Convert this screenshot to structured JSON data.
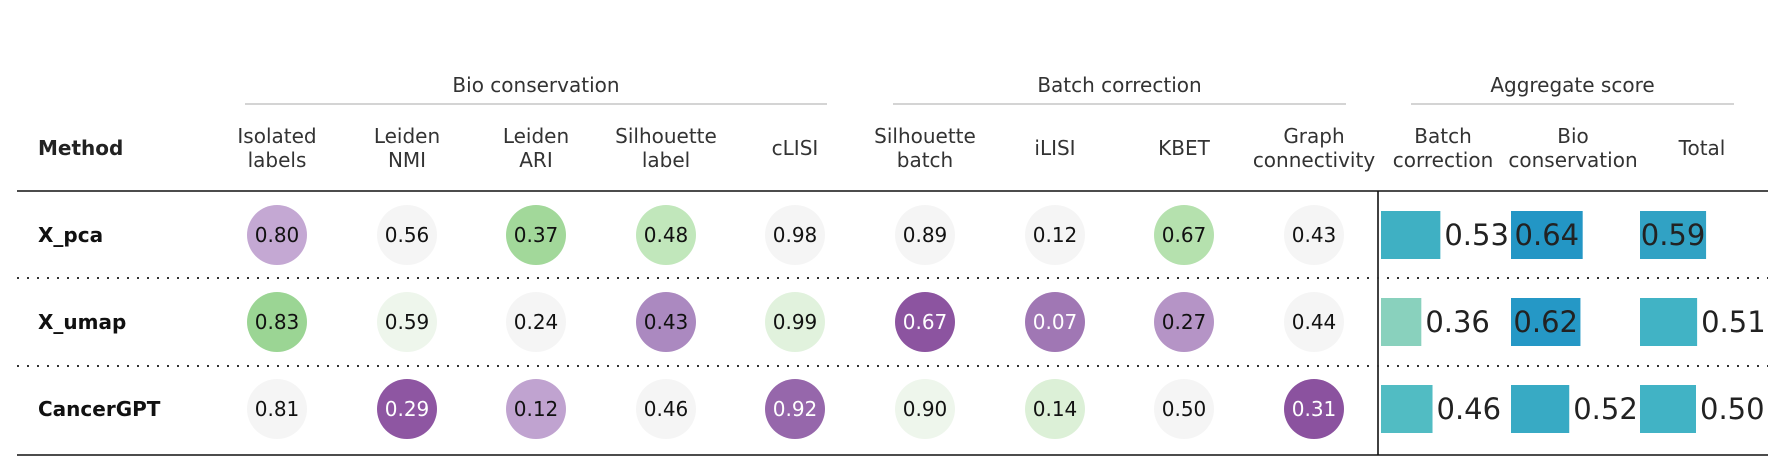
{
  "chart_data": {
    "type": "table",
    "method_header": "Method",
    "groups": [
      {
        "label": "Bio conservation",
        "columns": [
          0,
          4
        ]
      },
      {
        "label": "Batch correction",
        "columns": [
          5,
          8
        ]
      },
      {
        "label": "Aggregate score",
        "columns": [
          9,
          11
        ]
      }
    ],
    "metric_columns": [
      [
        "Isolated",
        "labels"
      ],
      [
        "Leiden",
        "NMI"
      ],
      [
        "Leiden",
        "ARI"
      ],
      [
        "Silhouette",
        "label"
      ],
      [
        "cLISI"
      ],
      [
        "Silhouette",
        "batch"
      ],
      [
        "iLISI"
      ],
      [
        "KBET"
      ],
      [
        "Graph",
        "connectivity"
      ]
    ],
    "aggregate_columns": [
      [
        "Batch",
        "correction"
      ],
      [
        "Bio",
        "conservation"
      ],
      [
        "Total"
      ]
    ],
    "rows": [
      {
        "method": "X_pca",
        "metrics": [
          "0.80",
          "0.56",
          "0.37",
          "0.48",
          "0.98",
          "0.89",
          "0.12",
          "0.67",
          "0.43"
        ],
        "metric_colors": [
          "#c4a8d3",
          "#f5f5f5",
          "#a2d89a",
          "#c1e7bb",
          "#f5f5f5",
          "#f5f5f5",
          "#f5f5f5",
          "#b5e1ae",
          "#f5f5f5"
        ],
        "aggregates": [
          "0.53",
          "0.64",
          "0.59"
        ],
        "aggregate_values": [
          0.53,
          0.64,
          0.59
        ],
        "aggregate_colors": [
          "#3fb0c3",
          "#2396c5",
          "#31a2c4"
        ]
      },
      {
        "method": "X_umap",
        "metrics": [
          "0.83",
          "0.59",
          "0.24",
          "0.43",
          "0.99",
          "0.67",
          "0.07",
          "0.27",
          "0.44"
        ],
        "metric_colors": [
          "#9bd594",
          "#eef6ec",
          "#f5f5f5",
          "#ab89c0",
          "#e1f2dd",
          "#8c54a0",
          "#a077b4",
          "#b594c6",
          "#f5f5f5"
        ],
        "aggregates": [
          "0.36",
          "0.62",
          "0.51"
        ],
        "aggregate_values": [
          0.36,
          0.62,
          0.51
        ],
        "aggregate_colors": [
          "#89d1bd",
          "#2598c6",
          "#41b3c5"
        ]
      },
      {
        "method": "CancerGPT",
        "metrics": [
          "0.81",
          "0.29",
          "0.12",
          "0.46",
          "0.92",
          "0.90",
          "0.14",
          "0.50",
          "0.31"
        ],
        "metric_colors": [
          "#f5f5f5",
          "#8e56a2",
          "#c0a3d0",
          "#f5f5f5",
          "#9667ab",
          "#eef6ec",
          "#dcf0d7",
          "#f5f5f5",
          "#8b529f"
        ],
        "aggregates": [
          "0.46",
          "0.52",
          "0.50"
        ],
        "aggregate_values": [
          0.46,
          0.52,
          0.5
        ],
        "aggregate_colors": [
          "#51bcc3",
          "#38aac4",
          "#41b3c5"
        ]
      }
    ]
  }
}
